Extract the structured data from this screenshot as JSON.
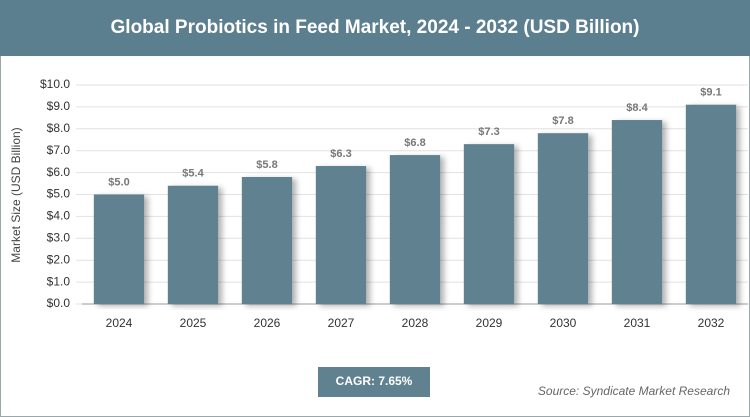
{
  "chart_data": {
    "type": "bar",
    "title": "Global Probiotics in Feed Market, 2024 - 2032 (USD Billion)",
    "y_label": "Market Size (USD Billion)",
    "categories": [
      "2024",
      "2025",
      "2026",
      "2027",
      "2028",
      "2029",
      "2030",
      "2031",
      "2032"
    ],
    "values": [
      5.0,
      5.4,
      5.8,
      6.3,
      6.8,
      7.3,
      7.8,
      8.4,
      9.1
    ],
    "value_labels": [
      "$5.0",
      "$5.4",
      "$5.8",
      "$6.3",
      "$6.8",
      "$7.3",
      "$7.8",
      "$8.4",
      "$9.1"
    ],
    "color": "#5f8190",
    "ylim": [
      0,
      10
    ],
    "yticks": [
      {
        "value": 0,
        "label": "$0.0"
      },
      {
        "value": 1,
        "label": "$1.0"
      },
      {
        "value": 2,
        "label": "$2.0"
      },
      {
        "value": 3,
        "label": "$3.0"
      },
      {
        "value": 4,
        "label": "$4.0"
      },
      {
        "value": 5,
        "label": "$5.0"
      },
      {
        "value": 6,
        "label": "$6.0"
      },
      {
        "value": 7,
        "label": "$7.0"
      },
      {
        "value": 8,
        "label": "$8.0"
      },
      {
        "value": 9,
        "label": "$9.0"
      },
      {
        "value": 10,
        "label": "$10.0"
      }
    ],
    "grid": true,
    "cagr": "CAGR: 7.65%",
    "source": "Source: Syndicate Market Research"
  }
}
